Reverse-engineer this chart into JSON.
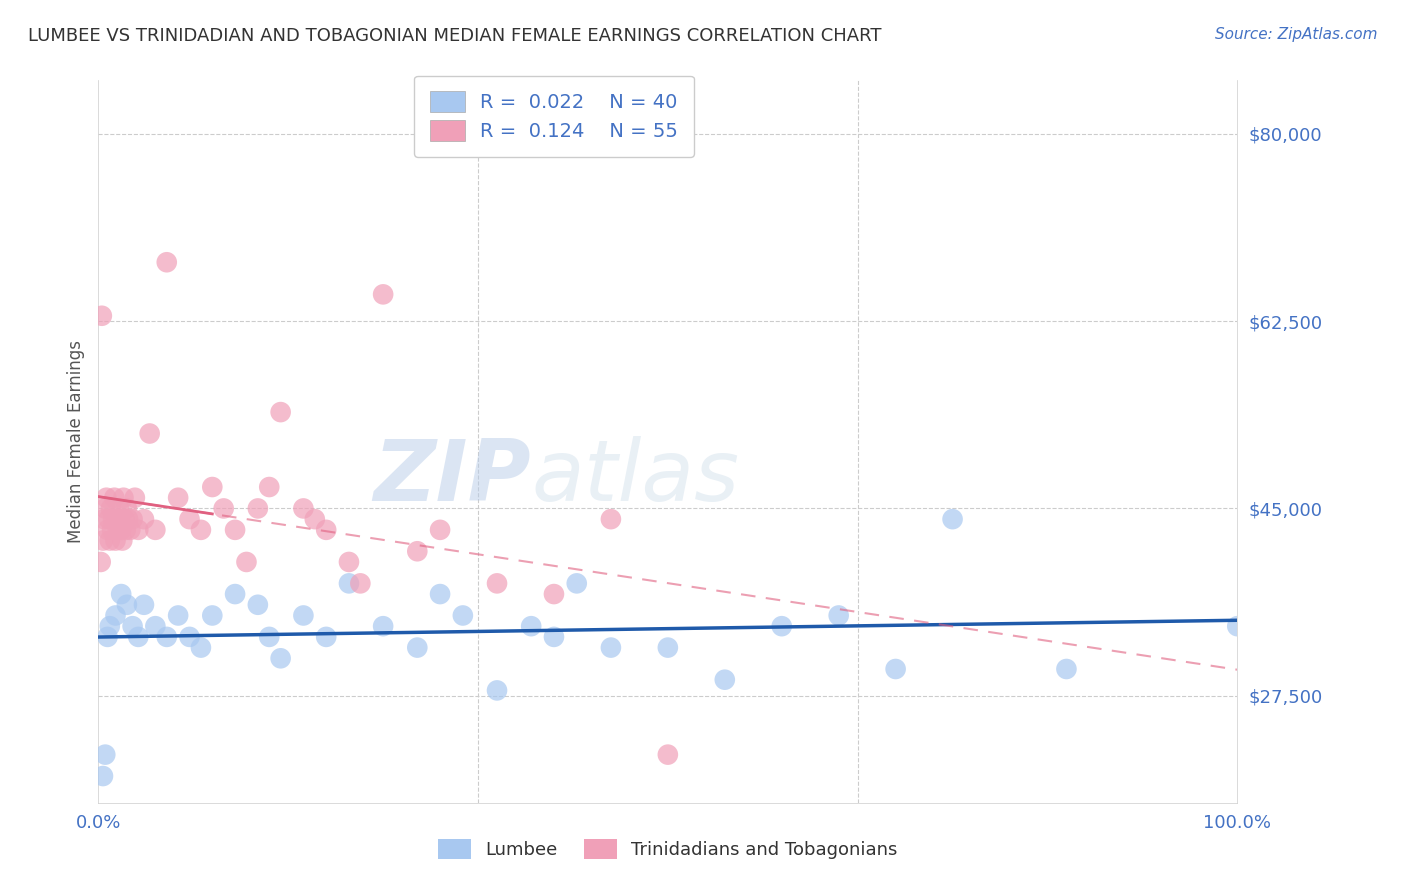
{
  "title": "LUMBEE VS TRINIDADIAN AND TOBAGONIAN MEDIAN FEMALE EARNINGS CORRELATION CHART",
  "source": "Source: ZipAtlas.com",
  "ylabel": "Median Female Earnings",
  "xlim": [
    0.0,
    100.0
  ],
  "ylim": [
    17500,
    85000
  ],
  "yticks": [
    27500,
    45000,
    62500,
    80000
  ],
  "ytick_labels": [
    "$27,500",
    "$45,000",
    "$62,500",
    "$80,000"
  ],
  "xtick_labels": [
    "0.0%",
    "100.0%"
  ],
  "title_color": "#333333",
  "axis_color": "#4472c4",
  "grid_color": "#cccccc",
  "lumbee": {
    "label": "Lumbee",
    "color": "#a8c8f0",
    "R": 0.022,
    "N": 40,
    "trend_color": "#1f5aaa",
    "x": [
      0.4,
      0.6,
      0.8,
      1.0,
      1.5,
      2.0,
      2.5,
      3.0,
      3.5,
      4.0,
      5.0,
      6.0,
      7.0,
      8.0,
      9.0,
      10.0,
      12.0,
      14.0,
      15.0,
      16.0,
      18.0,
      20.0,
      22.0,
      25.0,
      28.0,
      30.0,
      32.0,
      35.0,
      38.0,
      40.0,
      42.0,
      45.0,
      50.0,
      55.0,
      60.0,
      65.0,
      70.0,
      75.0,
      85.0,
      100.0
    ],
    "y": [
      20000,
      22000,
      33000,
      34000,
      35000,
      37000,
      36000,
      34000,
      33000,
      36000,
      34000,
      33000,
      35000,
      33000,
      32000,
      35000,
      37000,
      36000,
      33000,
      31000,
      35000,
      33000,
      38000,
      34000,
      32000,
      37000,
      35000,
      28000,
      34000,
      33000,
      38000,
      32000,
      32000,
      29000,
      34000,
      35000,
      30000,
      44000,
      30000,
      34000
    ]
  },
  "trinidadian": {
    "label": "Trinidadians and Tobagonians",
    "color": "#f0a0b8",
    "R": 0.124,
    "N": 55,
    "trend_color": "#e06080",
    "x": [
      0.2,
      0.3,
      0.4,
      0.5,
      0.6,
      0.7,
      0.8,
      0.9,
      1.0,
      1.1,
      1.2,
      1.3,
      1.4,
      1.5,
      1.6,
      1.7,
      1.8,
      1.9,
      2.0,
      2.1,
      2.2,
      2.3,
      2.4,
      2.5,
      2.6,
      2.8,
      3.0,
      3.2,
      3.5,
      4.0,
      4.5,
      5.0,
      6.0,
      7.0,
      8.0,
      9.0,
      10.0,
      11.0,
      12.0,
      14.0,
      15.0,
      16.0,
      18.0,
      20.0,
      22.0,
      25.0,
      28.0,
      30.0,
      35.0,
      40.0,
      45.0,
      50.0,
      13.0,
      19.0,
      23.0
    ],
    "y": [
      40000,
      63000,
      42000,
      44000,
      45000,
      46000,
      43000,
      44000,
      42000,
      45000,
      43000,
      44000,
      46000,
      42000,
      44000,
      43000,
      45000,
      44000,
      43000,
      42000,
      46000,
      44000,
      43000,
      45000,
      44000,
      43000,
      44000,
      46000,
      43000,
      44000,
      52000,
      43000,
      68000,
      46000,
      44000,
      43000,
      47000,
      45000,
      43000,
      45000,
      47000,
      54000,
      45000,
      43000,
      40000,
      65000,
      41000,
      43000,
      38000,
      37000,
      44000,
      22000,
      40000,
      44000,
      38000
    ]
  }
}
